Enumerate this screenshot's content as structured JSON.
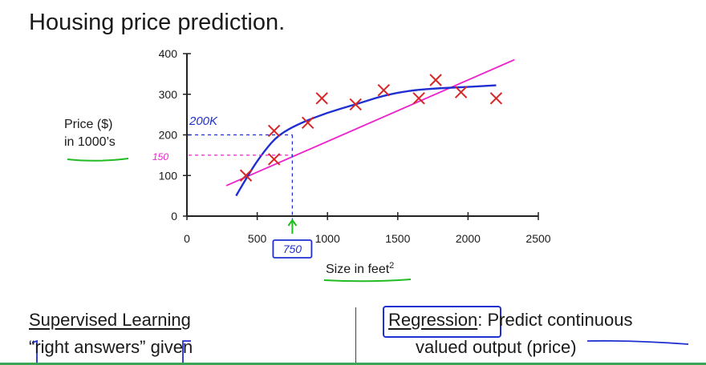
{
  "slide": {
    "title": "Housing price prediction.",
    "ylabel_line1": "Price ($)",
    "ylabel_line2": "in 1000’s",
    "xlabel": "Size in feet",
    "xlabel_sup": "2",
    "left_heading": "Supervised Learning",
    "left_line2_prefix": "“",
    "left_line2_quoted": "right answers",
    "left_line2_suffix": "” given",
    "right_heading": "Regression",
    "right_heading_rest": ": Predict continuous",
    "right_line2": "valued output (price)"
  },
  "annotations": {
    "label_200k": "200K",
    "label_150": "150",
    "label_750": "750",
    "colors": {
      "blue_ink": "#1f2fd1",
      "magenta_ink": "#ee22cc",
      "green_ink": "#22bb22",
      "marker_red": "#d62728"
    }
  },
  "chart_data": {
    "type": "scatter",
    "title": "",
    "xlabel": "Size in feet²",
    "ylabel": "Price ($) in 1000’s",
    "xlim": [
      0,
      2500
    ],
    "ylim": [
      0,
      400
    ],
    "xticks": [
      0,
      500,
      1000,
      1500,
      2000,
      2500
    ],
    "yticks": [
      0,
      100,
      200,
      300,
      400
    ],
    "points": [
      {
        "x": 420,
        "y": 100
      },
      {
        "x": 620,
        "y": 140
      },
      {
        "x": 620,
        "y": 210
      },
      {
        "x": 860,
        "y": 230
      },
      {
        "x": 960,
        "y": 290
      },
      {
        "x": 1200,
        "y": 275
      },
      {
        "x": 1400,
        "y": 310
      },
      {
        "x": 1650,
        "y": 290
      },
      {
        "x": 1770,
        "y": 335
      },
      {
        "x": 1950,
        "y": 305
      },
      {
        "x": 2200,
        "y": 290
      }
    ],
    "fits": [
      {
        "kind": "straight-line",
        "color": "#ee22cc",
        "points": [
          [
            280,
            75
          ],
          [
            2330,
            385
          ]
        ]
      },
      {
        "kind": "curve",
        "color": "#1f2fd1",
        "points": [
          [
            350,
            50
          ],
          [
            450,
            110
          ],
          [
            550,
            160
          ],
          [
            650,
            200
          ],
          [
            800,
            228
          ],
          [
            1000,
            255
          ],
          [
            1200,
            275
          ],
          [
            1400,
            297
          ],
          [
            1600,
            310
          ],
          [
            1800,
            315
          ],
          [
            2000,
            318
          ],
          [
            2200,
            322
          ]
        ]
      }
    ],
    "highlight": {
      "x": 750,
      "y_blue": 200,
      "y_magenta": 150
    }
  }
}
